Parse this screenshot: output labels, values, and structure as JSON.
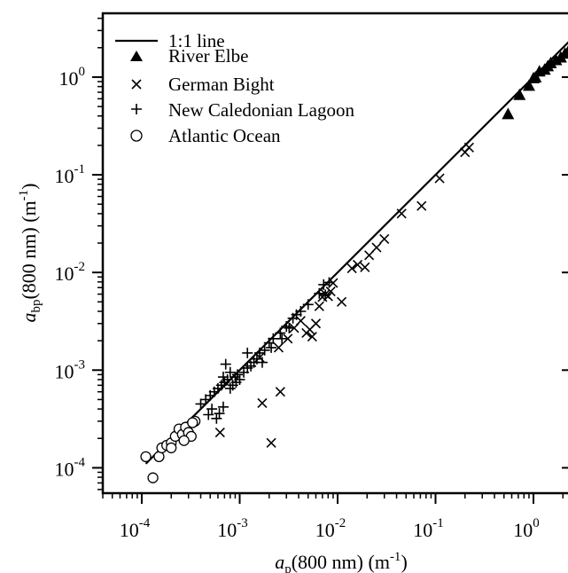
{
  "chart_data": {
    "type": "scatter",
    "xscale": "log",
    "yscale": "log",
    "xlim": [
      4e-05,
      2.5
    ],
    "ylim": [
      5.5e-05,
      4.5
    ],
    "xlabel": {
      "italic": "a",
      "sub": "p",
      "rest": "(800 nm)  (m",
      "sup": "-1",
      "close": ")"
    },
    "ylabel": {
      "italic": "a",
      "sub": "bp",
      "rest": "(800 nm)  (m",
      "sup": "-1",
      "close": ")"
    },
    "xticks": [
      {
        "value": 0.0001,
        "base": "10",
        "exp": "-4"
      },
      {
        "value": 0.001,
        "base": "10",
        "exp": "-3"
      },
      {
        "value": 0.01,
        "base": "10",
        "exp": "-2"
      },
      {
        "value": 0.1,
        "base": "10",
        "exp": "-1"
      },
      {
        "value": 1,
        "base": "10",
        "exp": "0"
      }
    ],
    "yticks": [
      {
        "value": 0.0001,
        "base": "10",
        "exp": "-4"
      },
      {
        "value": 0.001,
        "base": "10",
        "exp": "-3"
      },
      {
        "value": 0.01,
        "base": "10",
        "exp": "-2"
      },
      {
        "value": 0.1,
        "base": "10",
        "exp": "-1"
      },
      {
        "value": 1,
        "base": "10",
        "exp": "0"
      }
    ],
    "legend_position": "top-left",
    "one_to_one": {
      "name": "1:1 line",
      "x": [
        0.00011,
        2.5
      ]
    },
    "series": [
      {
        "name": "River Elbe",
        "marker": "filled-triangle",
        "points": [
          [
            0.55,
            0.42
          ],
          [
            0.72,
            0.66
          ],
          [
            0.9,
            0.82
          ],
          [
            1.0,
            0.98
          ],
          [
            1.05,
            1.0
          ],
          [
            1.15,
            1.15
          ],
          [
            1.3,
            1.2
          ],
          [
            1.4,
            1.3
          ],
          [
            1.5,
            1.4
          ],
          [
            1.7,
            1.5
          ],
          [
            1.9,
            1.6
          ],
          [
            2.1,
            1.75
          ],
          [
            2.3,
            1.9
          ]
        ]
      },
      {
        "name": "German Bight",
        "marker": "x",
        "points": [
          [
            0.00063,
            0.00023
          ],
          [
            0.0017,
            0.00046
          ],
          [
            0.0021,
            0.00018
          ],
          [
            0.0026,
            0.0006
          ],
          [
            0.0016,
            0.00135
          ],
          [
            0.0025,
            0.0017
          ],
          [
            0.0031,
            0.0021
          ],
          [
            0.0036,
            0.0027
          ],
          [
            0.0042,
            0.0032
          ],
          [
            0.0048,
            0.0024
          ],
          [
            0.0052,
            0.0026
          ],
          [
            0.0055,
            0.0022
          ],
          [
            0.006,
            0.003
          ],
          [
            0.0065,
            0.0045
          ],
          [
            0.007,
            0.0056
          ],
          [
            0.0075,
            0.006
          ],
          [
            0.008,
            0.0057
          ],
          [
            0.0085,
            0.0064
          ],
          [
            0.009,
            0.0078
          ],
          [
            0.011,
            0.005
          ],
          [
            0.014,
            0.011
          ],
          [
            0.016,
            0.012
          ],
          [
            0.019,
            0.0113
          ],
          [
            0.021,
            0.015
          ],
          [
            0.025,
            0.018
          ],
          [
            0.03,
            0.022
          ],
          [
            0.045,
            0.04
          ],
          [
            0.072,
            0.048
          ],
          [
            0.11,
            0.092
          ],
          [
            0.2,
            0.17
          ],
          [
            0.22,
            0.19
          ]
        ]
      },
      {
        "name": "New Caledonian Lagoon",
        "marker": "plus",
        "points": [
          [
            0.0004,
            0.00045
          ],
          [
            0.00045,
            0.0005
          ],
          [
            0.0005,
            0.00055
          ],
          [
            0.00055,
            0.0006
          ],
          [
            0.0006,
            0.00065
          ],
          [
            0.00065,
            0.0007
          ],
          [
            0.0007,
            0.00075
          ],
          [
            0.00075,
            0.0008
          ],
          [
            0.00048,
            0.00035
          ],
          [
            0.00052,
            0.0004
          ],
          [
            0.00058,
            0.00032
          ],
          [
            0.00062,
            0.00036
          ],
          [
            0.00068,
            0.00042
          ],
          [
            0.0008,
            0.00065
          ],
          [
            0.0008,
            0.00095
          ],
          [
            0.0009,
            0.00085
          ],
          [
            0.00095,
            0.0009
          ],
          [
            0.001,
            0.0008
          ],
          [
            0.0011,
            0.00095
          ],
          [
            0.0012,
            0.00105
          ],
          [
            0.0013,
            0.0011
          ],
          [
            0.0014,
            0.0012
          ],
          [
            0.0015,
            0.0013
          ],
          [
            0.0016,
            0.0015
          ],
          [
            0.0018,
            0.0016
          ],
          [
            0.002,
            0.0019
          ],
          [
            0.0022,
            0.0021
          ],
          [
            0.0026,
            0.0024
          ],
          [
            0.003,
            0.0028
          ],
          [
            0.0035,
            0.0034
          ],
          [
            0.0038,
            0.0037
          ],
          [
            0.0042,
            0.004
          ],
          [
            0.005,
            0.0047
          ],
          [
            0.0065,
            0.0061
          ],
          [
            0.0072,
            0.0075
          ],
          [
            0.0082,
            0.0079
          ],
          [
            0.00072,
            0.00115
          ],
          [
            0.00068,
            0.00085
          ],
          [
            0.0012,
            0.0015
          ],
          [
            0.0017,
            0.0012
          ],
          [
            0.0021,
            0.0017
          ],
          [
            0.0027,
            0.0021
          ],
          [
            0.0032,
            0.0027
          ],
          [
            0.0075,
            0.0059
          ],
          [
            0.00085,
            0.0007
          ],
          [
            0.00092,
            0.00075
          ]
        ]
      },
      {
        "name": "Atlantic Ocean",
        "marker": "open-circle",
        "points": [
          [
            0.00011,
            0.00013
          ],
          [
            0.00013,
            7.9e-05
          ],
          [
            0.00015,
            0.00013
          ],
          [
            0.00016,
            0.00016
          ],
          [
            0.00018,
            0.00017
          ],
          [
            0.0002,
            0.00018
          ],
          [
            0.00022,
            0.00021
          ],
          [
            0.00024,
            0.00025
          ],
          [
            0.00026,
            0.00022
          ],
          [
            0.00028,
            0.00026
          ],
          [
            0.0003,
            0.00023
          ],
          [
            0.00032,
            0.00021
          ],
          [
            0.00035,
            0.0003
          ],
          [
            0.0002,
            0.00016
          ],
          [
            0.00027,
            0.00019
          ],
          [
            0.00033,
            0.00029
          ]
        ]
      }
    ]
  }
}
